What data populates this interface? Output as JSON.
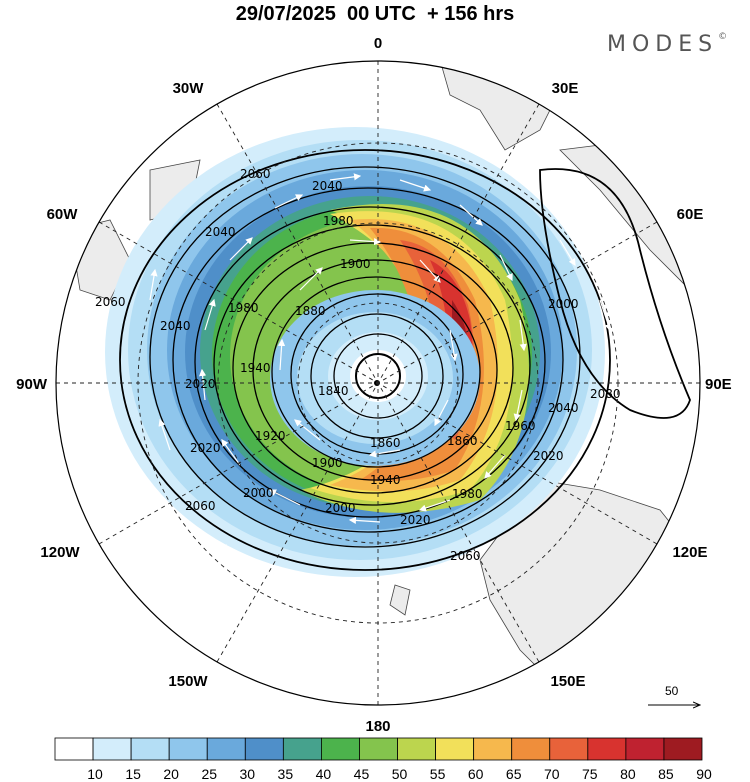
{
  "title": "29/07/2025  00 UTC  + 156 hrs",
  "brand": {
    "name": "MODES",
    "mark": "©"
  },
  "longitude_labels": {
    "0": "0",
    "30E": "30E",
    "60E": "60E",
    "90E": "90E",
    "120E": "120E",
    "150E": "150E",
    "180": "180",
    "150W": "150W",
    "120W": "120W",
    "90W": "90W",
    "60W": "60W",
    "30W": "30W"
  },
  "contour_labels": [
    "2060",
    "2040",
    "2040",
    "2060",
    "2040",
    "2020",
    "2020",
    "1980",
    "1940",
    "1920",
    "1980",
    "1900",
    "1880",
    "1840",
    "1860",
    "1860",
    "1900",
    "1940",
    "1980",
    "2000",
    "2000",
    "2020",
    "1960",
    "2020",
    "2040",
    "2000",
    "2080",
    "2060",
    "2060"
  ],
  "reference_vector": {
    "label": "50"
  },
  "colorbar": {
    "ticks": [
      "10",
      "15",
      "20",
      "25",
      "30",
      "35",
      "40",
      "45",
      "50",
      "55",
      "60",
      "65",
      "70",
      "75",
      "80",
      "85",
      "90"
    ],
    "colors": [
      "#ffffff",
      "#d3edfb",
      "#b4def5",
      "#8fc6ec",
      "#6aa9dc",
      "#4f8fc9",
      "#46a28d",
      "#4cb34c",
      "#84c44d",
      "#bcd54e",
      "#f2e05a",
      "#f6b84d",
      "#ef8e3b",
      "#e8623a",
      "#d8332f",
      "#bf2230",
      "#9e1b21"
    ]
  }
}
